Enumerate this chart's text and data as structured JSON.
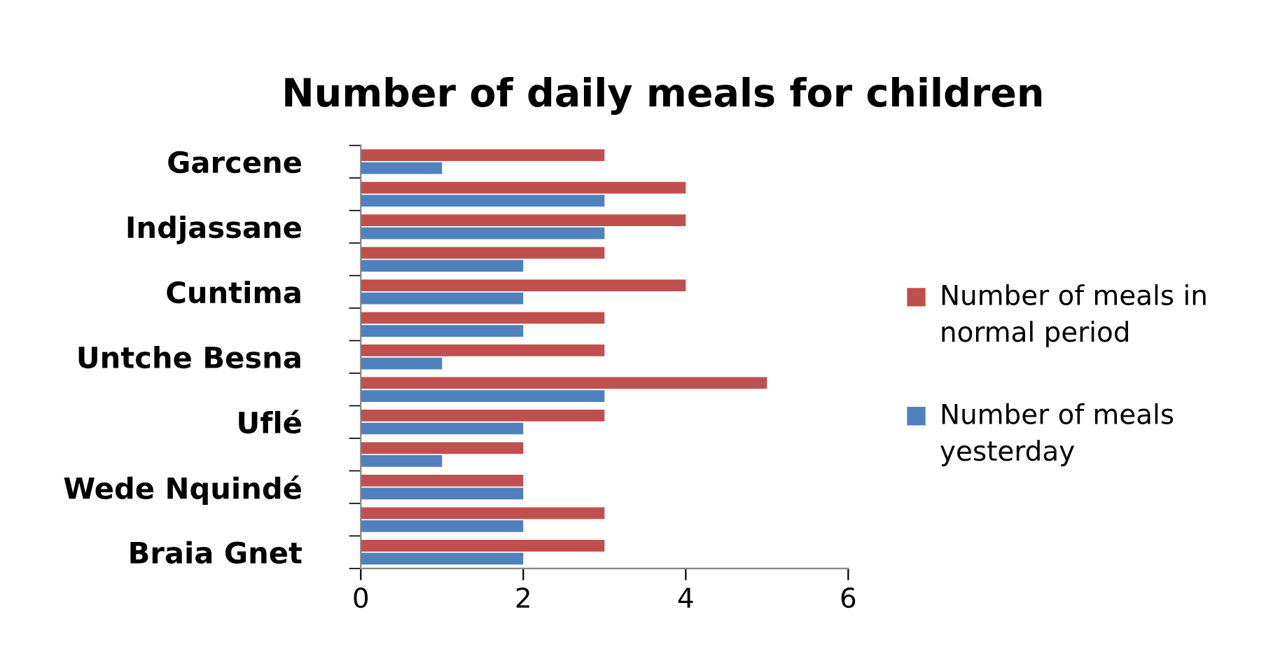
{
  "chart_data": {
    "type": "bar",
    "orientation": "horizontal",
    "title": "Number of daily meals for children",
    "categories": [
      "Garcene",
      null,
      "Indjassane",
      null,
      "Cuntima",
      null,
      "Untche Besna",
      null,
      "Uflé",
      null,
      "Wede Nquindé",
      null,
      "Braia Gnet"
    ],
    "series": [
      {
        "name": "Number of meals in normal period",
        "color": "#c0504d",
        "values": [
          3,
          4,
          4,
          3,
          4,
          3,
          3,
          5,
          3,
          2,
          2,
          3,
          3
        ]
      },
      {
        "name": "Number of meals yesterday",
        "color": "#4f81bd",
        "values": [
          1,
          3,
          3,
          2,
          2,
          2,
          1,
          3,
          2,
          1,
          2,
          2,
          2
        ]
      }
    ],
    "xlim": [
      0,
      6
    ],
    "xticks": [
      0,
      2,
      4,
      6
    ],
    "grid": false,
    "legend": "right"
  }
}
